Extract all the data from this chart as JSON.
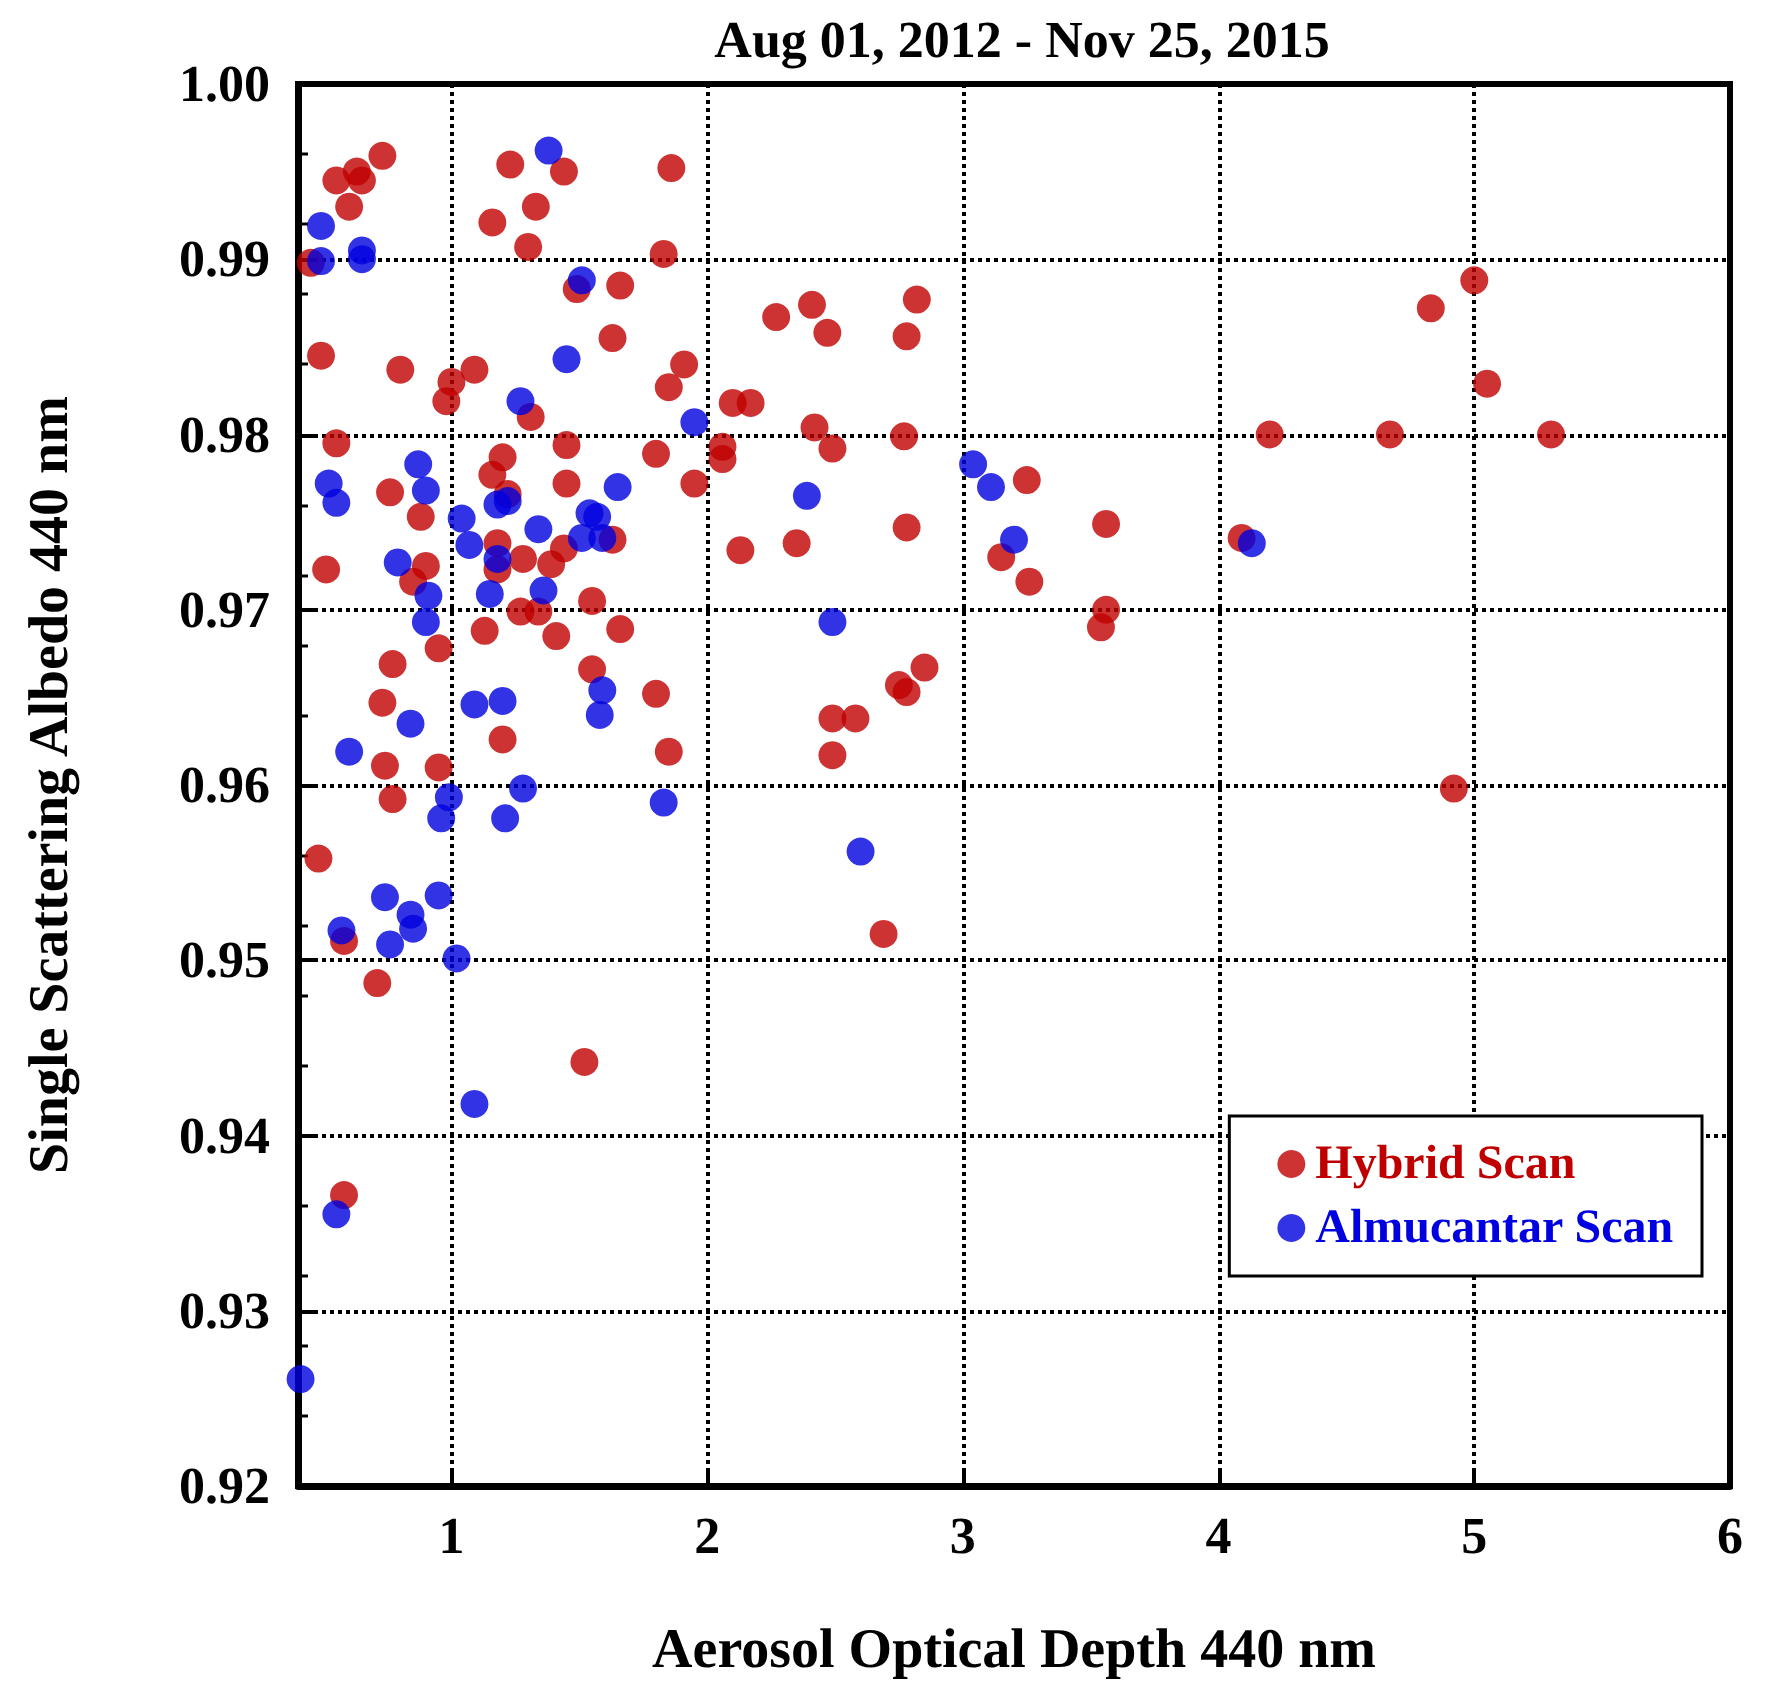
{
  "chart_data": {
    "type": "scatter",
    "title": "Aug 01, 2012 - Nov 25, 2015",
    "xlabel": "Aerosol Optical Depth 440 nm",
    "ylabel": "Single Scattering Albedo 440 nm",
    "xlim": [
      0.4,
      6
    ],
    "xticks": [
      1,
      2,
      3,
      4,
      5,
      6
    ],
    "ylim": [
      0.92,
      1.0
    ],
    "yticks": [
      0.92,
      0.93,
      0.94,
      0.95,
      0.96,
      0.97,
      0.98,
      0.99,
      {
        "value": 1,
        "label": "1.00"
      }
    ],
    "grid": true,
    "legend": "bottom right",
    "marker": "circle",
    "series": [
      {
        "name": "Hybrid Scan",
        "color": "#c00000",
        "x": [
          0.55,
          0.63,
          0.65,
          0.73,
          0.6,
          0.45,
          1.23,
          1.44,
          1.16,
          1.33,
          1.3,
          1.86,
          1.83,
          1.49,
          1.66,
          1.63,
          0.49,
          0.8,
          1.0,
          0.98,
          1.09,
          1.31,
          1.91,
          1.85,
          2.1,
          2.17,
          2.06,
          2.06,
          1.8,
          1.95,
          1.45,
          1.45,
          1.2,
          1.16,
          1.22,
          0.55,
          0.76,
          0.88,
          1.18,
          1.63,
          1.28,
          1.39,
          1.44,
          1.18,
          0.51,
          0.9,
          0.85,
          1.27,
          1.34,
          1.55,
          1.66,
          1.41,
          1.13,
          0.95,
          0.77,
          1.55,
          1.8,
          0.73,
          1.2,
          1.85,
          0.74,
          0.95,
          0.77,
          0.48,
          0.58,
          0.71,
          1.52,
          0.58,
          2.13,
          2.27,
          2.41,
          2.47,
          2.82,
          2.78,
          2.42,
          2.49,
          2.77,
          2.35,
          2.78,
          3.25,
          3.15,
          3.26,
          3.56,
          3.56,
          3.54,
          2.85,
          2.75,
          2.78,
          2.49,
          2.58,
          2.49,
          2.69,
          5.0,
          4.83,
          5.05,
          4.2,
          4.67,
          5.3,
          4.09,
          4.92
        ],
        "values": [
          0.9945,
          0.995,
          0.9945,
          0.9959,
          0.993,
          0.9898,
          0.9954,
          0.995,
          0.9921,
          0.993,
          0.9907,
          0.9952,
          0.9903,
          0.9883,
          0.9885,
          0.9855,
          0.9845,
          0.9837,
          0.983,
          0.9819,
          0.9837,
          0.981,
          0.984,
          0.9827,
          0.9818,
          0.9818,
          0.9793,
          0.9786,
          0.9789,
          0.9772,
          0.9794,
          0.9772,
          0.9787,
          0.9777,
          0.9766,
          0.9795,
          0.9767,
          0.9753,
          0.9738,
          0.974,
          0.9729,
          0.9726,
          0.9735,
          0.9723,
          0.9723,
          0.9725,
          0.9716,
          0.9699,
          0.9699,
          0.9705,
          0.9689,
          0.9685,
          0.9688,
          0.9678,
          0.9669,
          0.9666,
          0.9652,
          0.9647,
          0.9626,
          0.9619,
          0.9611,
          0.961,
          0.9592,
          0.9558,
          0.9511,
          0.9487,
          0.9442,
          0.9366,
          0.9734,
          0.9867,
          0.9874,
          0.9858,
          0.9877,
          0.9856,
          0.9804,
          0.9792,
          0.9799,
          0.9738,
          0.9747,
          0.9774,
          0.973,
          0.9716,
          0.9749,
          0.97,
          0.969,
          0.9667,
          0.9657,
          0.9653,
          0.9638,
          0.9638,
          0.9617,
          0.9515,
          0.9888,
          0.9872,
          0.9829,
          0.98,
          0.98,
          0.98,
          0.9741,
          0.9598
        ]
      },
      {
        "name": "Almucantar Scan",
        "color": "#0000e0",
        "x": [
          0.49,
          0.49,
          0.65,
          0.65,
          1.38,
          1.51,
          1.45,
          1.27,
          1.95,
          0.87,
          0.9,
          0.52,
          0.55,
          1.04,
          1.18,
          1.22,
          1.34,
          1.54,
          1.57,
          1.65,
          1.51,
          1.59,
          1.07,
          0.79,
          0.91,
          0.9,
          1.15,
          1.36,
          1.18,
          1.09,
          1.2,
          1.59,
          1.58,
          0.84,
          0.6,
          0.99,
          0.96,
          1.28,
          1.21,
          1.83,
          0.74,
          0.95,
          0.84,
          0.85,
          0.57,
          0.76,
          1.02,
          1.09,
          0.55,
          0.41,
          2.39,
          2.49,
          2.6,
          3.04,
          3.11,
          3.2,
          4.13
        ],
        "values": [
          0.9919,
          0.9899,
          0.9905,
          0.99,
          0.9962,
          0.9888,
          0.9843,
          0.9819,
          0.9807,
          0.9783,
          0.9768,
          0.9772,
          0.9761,
          0.9752,
          0.976,
          0.9762,
          0.9746,
          0.9755,
          0.9753,
          0.977,
          0.9741,
          0.9741,
          0.9737,
          0.9727,
          0.9708,
          0.9693,
          0.9709,
          0.9711,
          0.9729,
          0.9646,
          0.9648,
          0.9654,
          0.964,
          0.9635,
          0.9619,
          0.9593,
          0.9581,
          0.9598,
          0.9581,
          0.959,
          0.9536,
          0.9537,
          0.9526,
          0.9518,
          0.9517,
          0.9509,
          0.9501,
          0.9418,
          0.9355,
          0.9261,
          0.9765,
          0.9693,
          0.9562,
          0.9783,
          0.977,
          0.974,
          0.9738
        ]
      }
    ]
  }
}
